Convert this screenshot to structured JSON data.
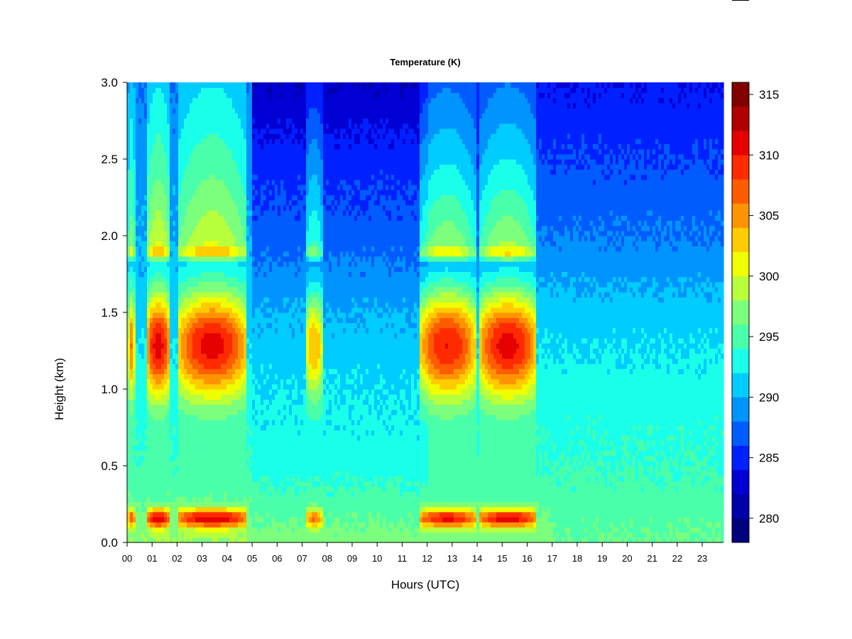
{
  "chart_data": {
    "type": "heatmap",
    "title": "Temperature (K)",
    "xlabel": "Hours (UTC)",
    "ylabel": "Height (km)",
    "xlim": [
      0,
      23.85
    ],
    "ylim": [
      0,
      3.0
    ],
    "x_ticks": [
      "00",
      "01",
      "02",
      "03",
      "04",
      "05",
      "06",
      "07",
      "08",
      "09",
      "10",
      "11",
      "12",
      "13",
      "14",
      "15",
      "16",
      "17",
      "18",
      "19",
      "20",
      "21",
      "22",
      "23"
    ],
    "y_ticks": [
      "0.0",
      "0.5",
      "1.0",
      "1.5",
      "2.0",
      "2.5",
      "3.0"
    ],
    "colorbar": {
      "range": [
        278,
        316
      ],
      "tick_values": [
        280,
        285,
        290,
        295,
        300,
        305,
        310,
        315
      ],
      "tick_labels": [
        "280",
        "285",
        "290",
        "295",
        "300",
        "305",
        "310",
        "315"
      ],
      "levels": [
        {
          "min": 278,
          "max": 280,
          "color": "#00007F"
        },
        {
          "min": 280,
          "max": 282,
          "color": "#0000AA"
        },
        {
          "min": 282,
          "max": 284,
          "color": "#0000D4"
        },
        {
          "min": 284,
          "max": 286,
          "color": "#0020FF"
        },
        {
          "min": 286,
          "max": 288,
          "color": "#005CFF"
        },
        {
          "min": 288,
          "max": 290,
          "color": "#0094FF"
        },
        {
          "min": 290,
          "max": 292,
          "color": "#00CCFF"
        },
        {
          "min": 292,
          "max": 294,
          "color": "#1AFFEA"
        },
        {
          "min": 294,
          "max": 296,
          "color": "#4AFFAA"
        },
        {
          "min": 296,
          "max": 298,
          "color": "#7CFF7C"
        },
        {
          "min": 298,
          "max": 300,
          "color": "#B8FF3C"
        },
        {
          "min": 300,
          "max": 302,
          "color": "#F0FF00"
        },
        {
          "min": 302,
          "max": 304,
          "color": "#FFCC00"
        },
        {
          "min": 304,
          "max": 306,
          "color": "#FF9400"
        },
        {
          "min": 306,
          "max": 308,
          "color": "#FF5C00"
        },
        {
          "min": 308,
          "max": 310,
          "color": "#FF2A00"
        },
        {
          "min": 310,
          "max": 312,
          "color": "#E60000"
        },
        {
          "min": 312,
          "max": 314,
          "color": "#B00000"
        },
        {
          "min": 314,
          "max": 316,
          "color": "#800000"
        }
      ]
    },
    "warm_events": [
      {
        "start": 0.05,
        "end": 0.3,
        "peak_K": 306,
        "top_km": 3.0
      },
      {
        "start": 0.75,
        "end": 1.75,
        "peak_K": 311,
        "top_km": 3.0
      },
      {
        "start": 2.0,
        "end": 4.8,
        "peak_K": 311,
        "top_km": 3.0
      },
      {
        "start": 7.1,
        "end": 7.85,
        "peak_K": 304,
        "top_km": 3.0
      },
      {
        "start": 11.65,
        "end": 13.95,
        "peak_K": 310,
        "top_km": 3.0
      },
      {
        "start": 14.05,
        "end": 16.4,
        "peak_K": 311,
        "top_km": 3.0
      }
    ],
    "background_profile": {
      "note": "Approximate temperature at heights 0.0,0.5,1.0,1.5,2.0,2.5,3.0 km outside warm events",
      "heights_km": [
        0.0,
        0.5,
        1.0,
        1.5,
        2.0,
        2.5,
        3.0
      ],
      "temperature_K_by_period": [
        {
          "from": 0,
          "to": 5,
          "values": [
            298,
            294,
            293,
            291,
            290,
            289,
            288
          ]
        },
        {
          "from": 5,
          "to": 12,
          "values": [
            297,
            293,
            292,
            290,
            287,
            285,
            282
          ]
        },
        {
          "from": 12,
          "to": 17,
          "values": [
            297,
            294,
            293,
            291,
            288,
            286,
            284
          ]
        },
        {
          "from": 17,
          "to": 24,
          "values": [
            296,
            294,
            293,
            291,
            288,
            286,
            284
          ]
        }
      ]
    }
  }
}
